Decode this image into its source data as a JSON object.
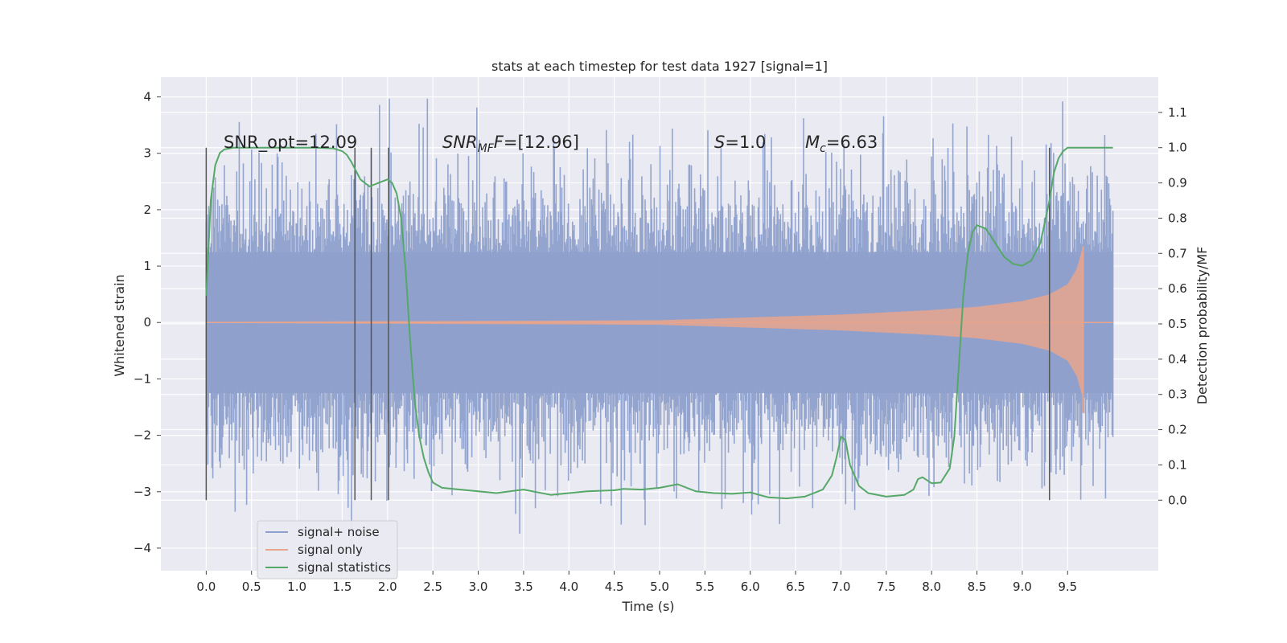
{
  "chart_data": {
    "type": "line",
    "title": "stats at each timestep for test data 1927 [signal=1]",
    "xlabel": "Time (s)",
    "ylabel": "Whitened strain",
    "ylabel_right": "Detection probability/MF",
    "xlim": [
      -0.5,
      10.5
    ],
    "ylim": [
      -4.4,
      4.35
    ],
    "ylim_right": [
      -0.2,
      1.2
    ],
    "x_ticks": [
      "0.0",
      "0.5",
      "1.0",
      "1.5",
      "2.0",
      "2.5",
      "3.0",
      "3.5",
      "4.0",
      "4.5",
      "5.0",
      "5.5",
      "6.0",
      "6.5",
      "7.0",
      "7.5",
      "8.0",
      "8.5",
      "9.0",
      "9.5"
    ],
    "y_ticks": [
      "4",
      "3",
      "2",
      "1",
      "0",
      "−1",
      "−2",
      "−3",
      "−4"
    ],
    "y_ticks_right": [
      "1.1",
      "1.0",
      "0.9",
      "0.8",
      "0.7",
      "0.6",
      "0.5",
      "0.4",
      "0.3",
      "0.2",
      "0.1",
      "0.0"
    ],
    "grid": true,
    "legend_placement": "lower left",
    "annotations": {
      "snr_opt": "SNR_opt=12.09",
      "snr_mf_label": "SNR",
      "snr_mf_sub": "MF",
      "snr_mf_value": "=[12.96]",
      "s_label": "S",
      "s_value": "=1.0",
      "mc_label": "M",
      "mc_sub": "c",
      "mc_value": "=6.63"
    },
    "vertical_markers": [
      0.0,
      1.64,
      1.82,
      2.01,
      9.3
    ],
    "series": [
      {
        "name": "signal+ noise",
        "color": "#8ea0cc",
        "description_range": {
          "x_start": 0.0,
          "x_end": 10.0,
          "typical_amplitude": 2.0,
          "max": 3.97,
          "min": -4.05
        }
      },
      {
        "name": "signal only",
        "color": "#e8a58c",
        "envelope": {
          "x": [
            0.0,
            5.0,
            6.0,
            7.0,
            8.0,
            8.5,
            9.0,
            9.3,
            9.5,
            9.6,
            9.67
          ],
          "amp": [
            0.01,
            0.04,
            0.09,
            0.14,
            0.22,
            0.28,
            0.38,
            0.5,
            0.68,
            0.95,
            1.35
          ]
        }
      },
      {
        "name": "signal statistics",
        "color": "#55a868",
        "axis": "right",
        "x": [
          0.0,
          0.05,
          0.1,
          0.15,
          0.2,
          0.3,
          0.5,
          0.8,
          1.0,
          1.2,
          1.4,
          1.5,
          1.55,
          1.6,
          1.7,
          1.8,
          1.9,
          2.0,
          2.05,
          2.1,
          2.15,
          2.2,
          2.25,
          2.3,
          2.35,
          2.4,
          2.45,
          2.5,
          2.6,
          2.8,
          3.0,
          3.2,
          3.5,
          3.8,
          4.0,
          4.2,
          4.5,
          4.6,
          4.8,
          5.0,
          5.2,
          5.4,
          5.6,
          5.8,
          6.0,
          6.2,
          6.4,
          6.6,
          6.8,
          6.9,
          6.95,
          7.0,
          7.05,
          7.1,
          7.2,
          7.3,
          7.5,
          7.7,
          7.8,
          7.85,
          7.9,
          8.0,
          8.1,
          8.2,
          8.25,
          8.3,
          8.35,
          8.4,
          8.45,
          8.5,
          8.6,
          8.7,
          8.8,
          8.9,
          9.0,
          9.1,
          9.2,
          9.3,
          9.35,
          9.4,
          9.45,
          9.5,
          9.6,
          9.7,
          10.0
        ],
        "y": [
          0.58,
          0.85,
          0.95,
          0.985,
          0.995,
          1.0,
          1.0,
          1.0,
          1.0,
          1.0,
          0.998,
          0.99,
          0.98,
          0.96,
          0.91,
          0.89,
          0.9,
          0.91,
          0.9,
          0.87,
          0.8,
          0.65,
          0.45,
          0.28,
          0.18,
          0.12,
          0.08,
          0.05,
          0.035,
          0.03,
          0.025,
          0.02,
          0.03,
          0.015,
          0.02,
          0.025,
          0.028,
          0.032,
          0.03,
          0.035,
          0.045,
          0.025,
          0.02,
          0.018,
          0.022,
          0.008,
          0.005,
          0.01,
          0.03,
          0.07,
          0.12,
          0.18,
          0.17,
          0.1,
          0.04,
          0.02,
          0.01,
          0.015,
          0.03,
          0.06,
          0.065,
          0.048,
          0.05,
          0.09,
          0.18,
          0.38,
          0.58,
          0.7,
          0.76,
          0.78,
          0.77,
          0.73,
          0.69,
          0.67,
          0.665,
          0.68,
          0.73,
          0.85,
          0.93,
          0.97,
          0.99,
          1.0,
          1.0,
          1.0,
          1.0
        ]
      }
    ]
  }
}
